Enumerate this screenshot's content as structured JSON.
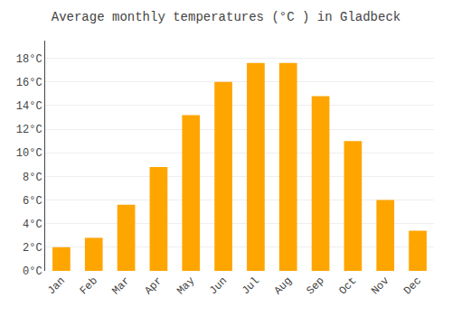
{
  "chart_data": {
    "type": "bar",
    "title": "Average monthly temperatures (°C ) in Gladbeck",
    "categories": [
      "Jan",
      "Feb",
      "Mar",
      "Apr",
      "May",
      "Jun",
      "Jul",
      "Aug",
      "Sep",
      "Oct",
      "Nov",
      "Dec"
    ],
    "values": [
      2.0,
      2.8,
      5.6,
      8.8,
      13.2,
      16.0,
      17.6,
      17.6,
      14.8,
      11.0,
      6.0,
      3.4
    ],
    "color": "#FFA500",
    "ylim": [
      0,
      19.5
    ],
    "yticks": [
      {
        "value": 0,
        "label": "0°C"
      },
      {
        "value": 2,
        "label": "2°C"
      },
      {
        "value": 4,
        "label": "4°C"
      },
      {
        "value": 6,
        "label": "6°C"
      },
      {
        "value": 8,
        "label": "8°C"
      },
      {
        "value": 10,
        "label": "10°C"
      },
      {
        "value": 12,
        "label": "12°C"
      },
      {
        "value": 14,
        "label": "14°C"
      },
      {
        "value": 16,
        "label": "16°C"
      },
      {
        "value": 18,
        "label": "18°C"
      }
    ],
    "grid": true
  }
}
